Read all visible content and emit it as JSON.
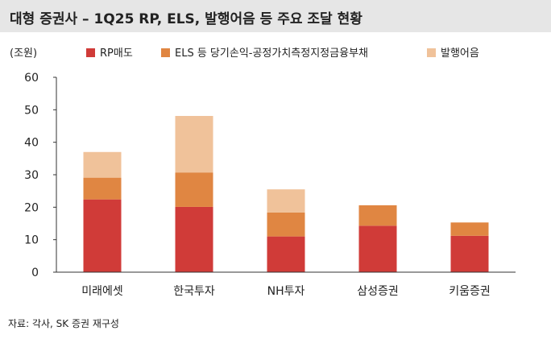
{
  "title": "대형 증권사 – 1Q25 RP, ELS, 발행어음 등 주요 조달 현황",
  "source": "자료: 각사, SK 증권 재구성",
  "chart_data": {
    "type": "bar",
    "stacked": true,
    "unit_label": "(조원)",
    "categories": [
      "미래에셋",
      "한국투자",
      "NH투자",
      "삼성증권",
      "키움증권"
    ],
    "series": [
      {
        "name": "RP매도",
        "color": "#d03b38",
        "values": [
          22.4,
          20.1,
          11.0,
          14.3,
          11.2
        ]
      },
      {
        "name": "ELS 등 당기손익-공정가치측정지정금융부채",
        "color": "#e08642",
        "values": [
          6.7,
          10.6,
          7.4,
          6.3,
          4.1
        ]
      },
      {
        "name": "발행어음",
        "color": "#f0c29a",
        "values": [
          7.9,
          17.4,
          7.1,
          0,
          0
        ]
      }
    ],
    "ylim": [
      0,
      60
    ],
    "yticks": [
      0,
      10,
      20,
      30,
      40,
      50,
      60
    ],
    "legend_position": "top",
    "grid": false
  }
}
